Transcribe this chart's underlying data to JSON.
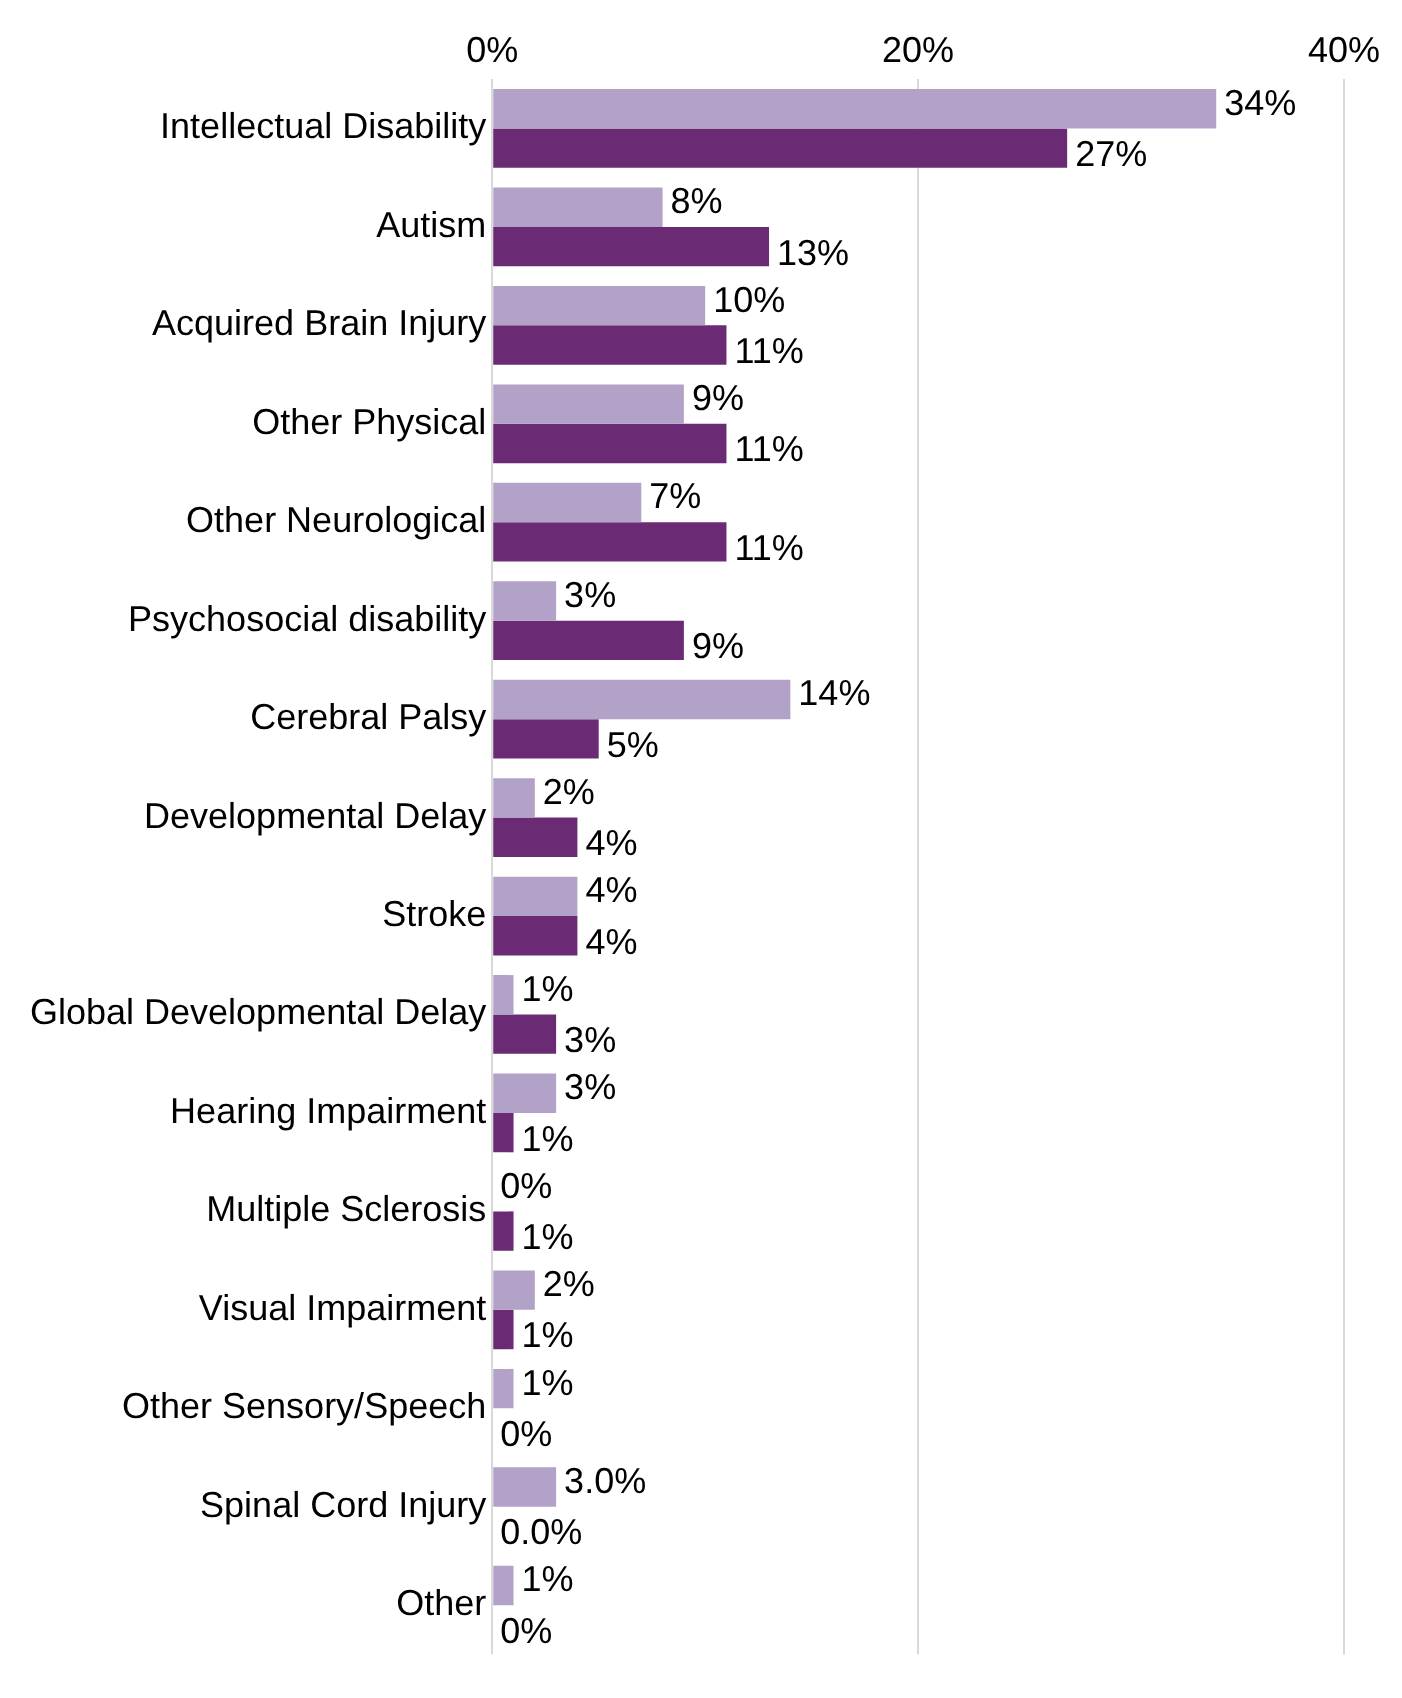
{
  "chart_data": {
    "type": "bar",
    "orientation": "horizontal",
    "categories": [
      "Intellectual Disability",
      "Autism",
      "Acquired Brain Injury",
      "Other Physical",
      "Other Neurological",
      "Psychosocial disability",
      "Cerebral Palsy",
      "Developmental Delay",
      "Stroke",
      "Global Developmental Delay",
      "Hearing Impairment",
      "Multiple Sclerosis",
      "Visual Impairment",
      "Other Sensory/Speech",
      "Spinal Cord Injury",
      "Other"
    ],
    "series": [
      {
        "color": "#b3a2c7",
        "values": [
          34,
          8,
          10,
          9,
          7,
          3,
          14,
          2,
          4,
          1,
          3,
          0,
          2,
          1,
          3.0,
          1
        ],
        "value_labels": [
          "34%",
          "8%",
          "10%",
          "9%",
          "7%",
          "3%",
          "14%",
          "2%",
          "4%",
          "1%",
          "3%",
          "0%",
          "2%",
          "1%",
          "3.0%",
          "1%"
        ]
      },
      {
        "color": "#6b2a74",
        "values": [
          27,
          13,
          11,
          11,
          11,
          9,
          5,
          4,
          4,
          3,
          1,
          1,
          1,
          0,
          0.0,
          0
        ],
        "value_labels": [
          "27%",
          "13%",
          "11%",
          "11%",
          "11%",
          "9%",
          "5%",
          "4%",
          "4%",
          "3%",
          "1%",
          "1%",
          "1%",
          "0%",
          "0.0%",
          "0%"
        ]
      }
    ],
    "xlim": [
      0,
      40
    ],
    "xticks": [
      {
        "value": 0,
        "label": "0%"
      },
      {
        "value": 20,
        "label": "20%"
      },
      {
        "value": 40,
        "label": "40%"
      }
    ],
    "grid": "x",
    "legend": false
  }
}
